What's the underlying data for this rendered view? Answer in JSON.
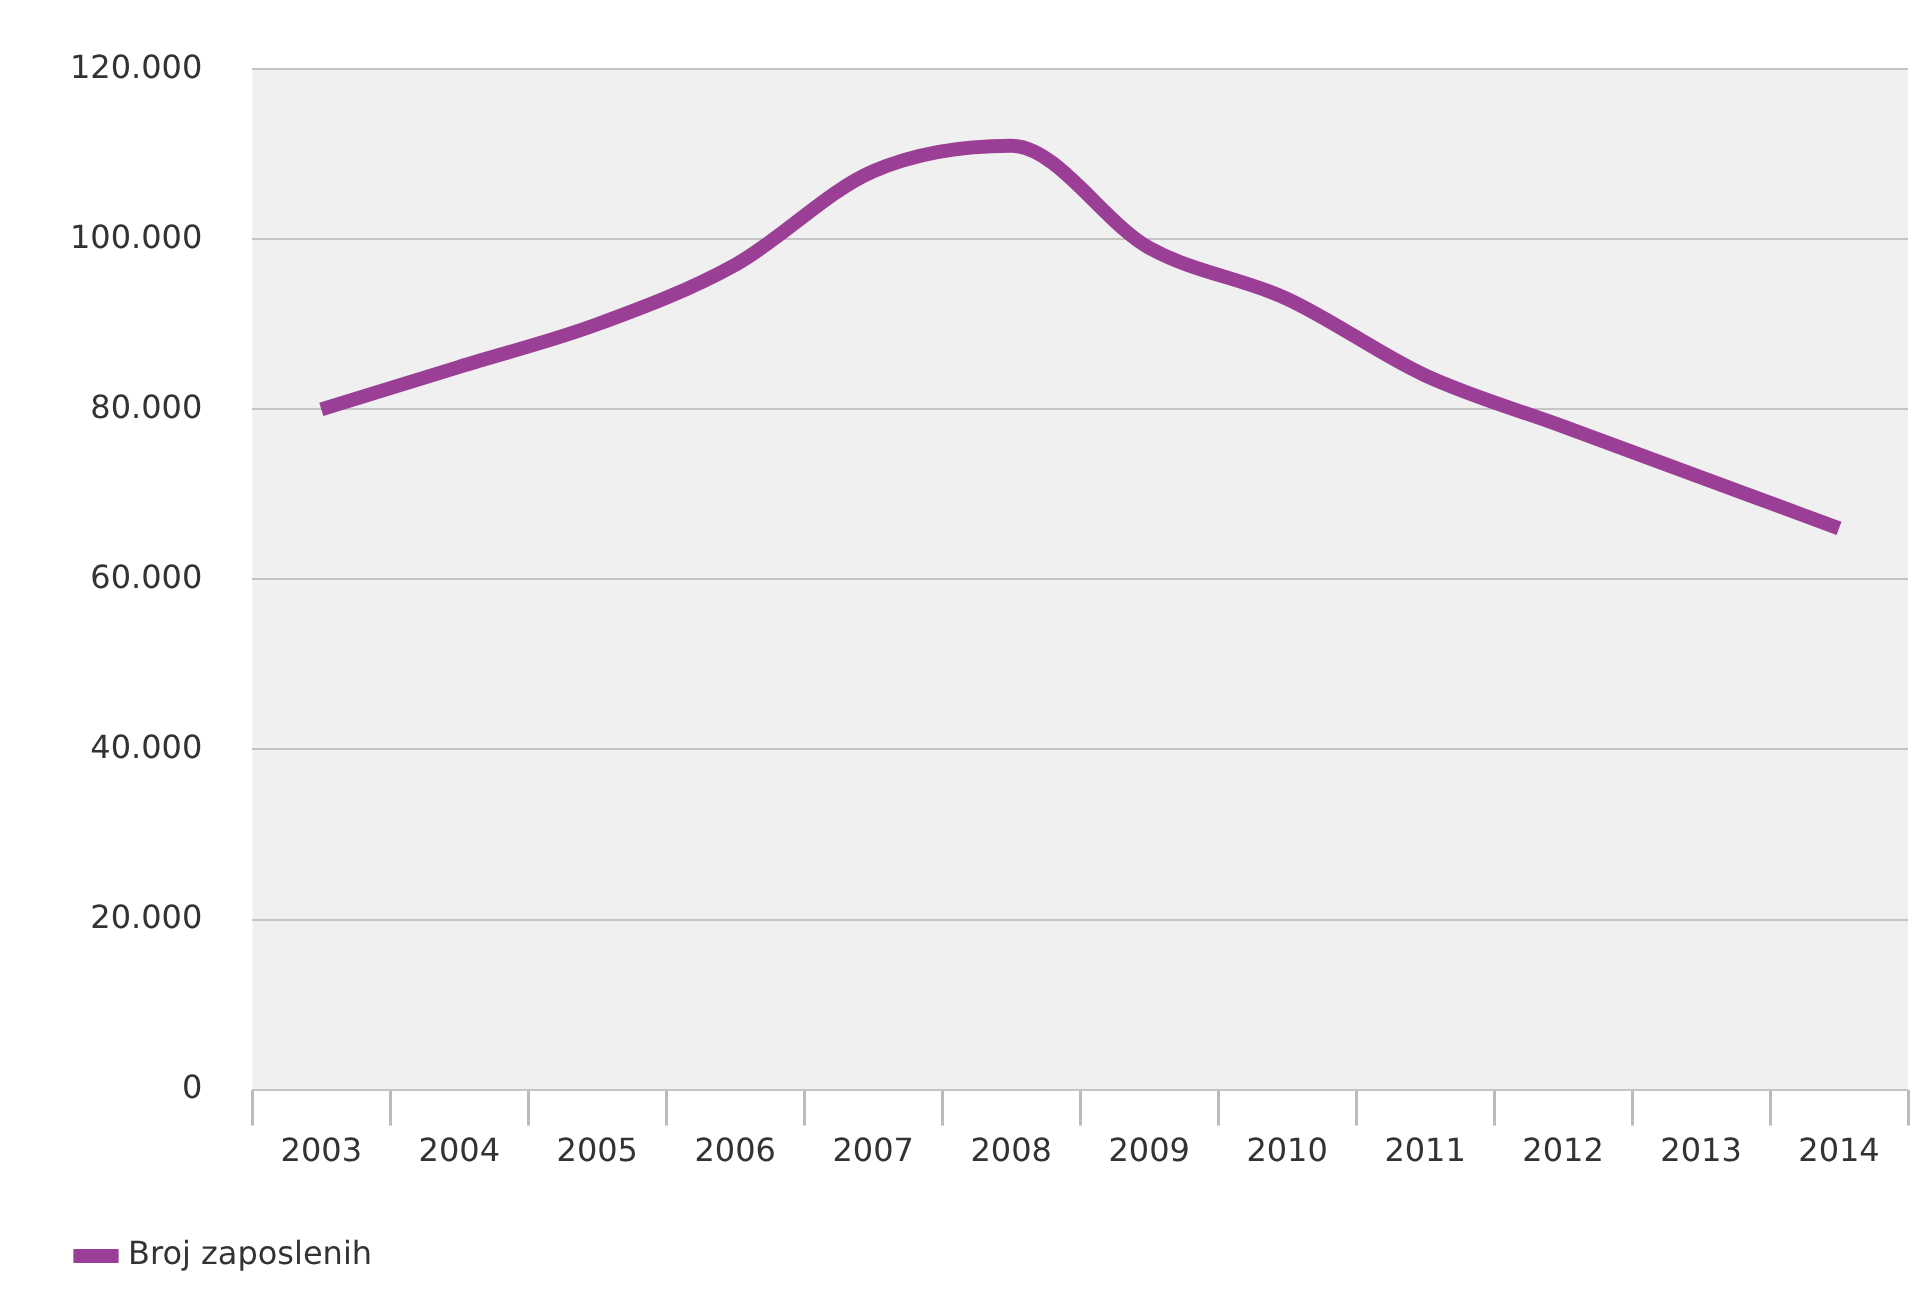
{
  "chart_data": {
    "type": "line",
    "categories": [
      "2003",
      "2004",
      "2005",
      "2006",
      "2007",
      "2008",
      "2009",
      "2010",
      "2011",
      "2012",
      "2013",
      "2014"
    ],
    "series": [
      {
        "name": "Broj zaposlenih",
        "color": "#9b3f96",
        "values": [
          80000,
          85000,
          90000,
          97000,
          108000,
          111000,
          99000,
          93000,
          84000,
          78000,
          72000,
          66000
        ]
      }
    ],
    "ylim": [
      0,
      120000
    ],
    "yticks": [
      0,
      {
        "value": 20000,
        "label": "20.000"
      },
      {
        "value": 40000,
        "label": "40.000"
      },
      {
        "value": 60000,
        "label": "60.000"
      },
      {
        "value": 80000,
        "label": "80.000"
      },
      {
        "value": 100000,
        "label": "100.000"
      },
      {
        "value": 120000,
        "label": "120.000"
      }
    ],
    "grid": "y",
    "legend": "bottom left",
    "marker": "none",
    "line_style": "solid"
  }
}
